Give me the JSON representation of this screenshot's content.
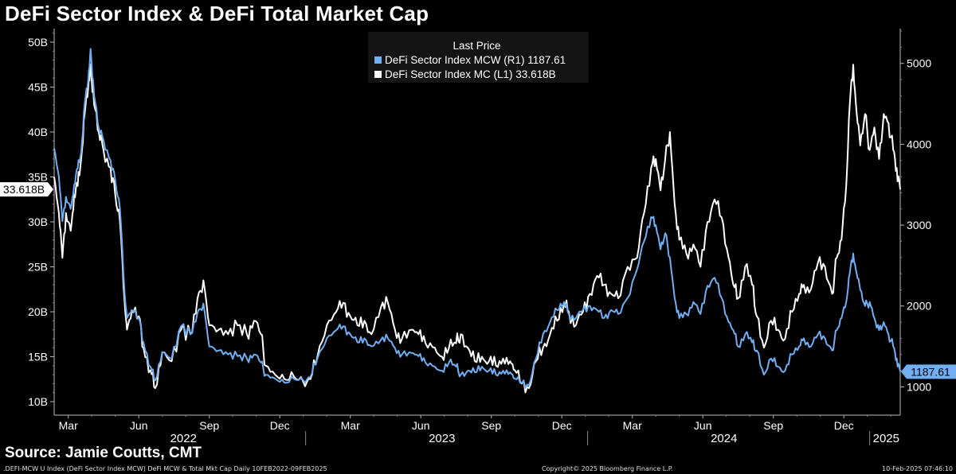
{
  "header": {
    "title": "DeFi Sector Index & DeFi Total Market Cap"
  },
  "source": "Source: Jamie Coutts, CMT",
  "footer": {
    "left": ".DEFI-MCW U Index (DeFi Sector Index MCW) DeFi MCW & Total Mkt Cap  Daily 10FEB2022-09FEB2025",
    "center": "Copyright© 2025 Bloomberg Finance L.P.",
    "right": "10-Feb-2025 07:46:10"
  },
  "colors": {
    "mcw": "#72aef2",
    "mc": "#ffffff",
    "background": "#000000"
  },
  "chart_data": {
    "type": "line",
    "title": "DeFi Sector Index & DeFi Total Market Cap",
    "x_range": [
      "2022-02-10",
      "2025-02-09"
    ],
    "legend": {
      "heading": "Last Price",
      "placement": "top-center",
      "entries": [
        {
          "label": "DeFi Sector Index MCW  (R1) 1187.61",
          "series": "mcw"
        },
        {
          "label": "DeFi Sector Index MC  (L1)  33.618B",
          "series": "mc"
        }
      ]
    },
    "left_axis": {
      "min": 8.5,
      "max": 51.5,
      "ticks": [
        10,
        15,
        20,
        25,
        30,
        35,
        40,
        45,
        50
      ],
      "tick_labels": [
        "10B",
        "15B",
        "20B",
        "25B",
        "30B",
        "35B",
        "40B",
        "45B",
        "50B"
      ],
      "last_value": 33.618,
      "last_label": "33.618B"
    },
    "right_axis": {
      "min": 650,
      "max": 5430,
      "ticks": [
        1000,
        2000,
        3000,
        4000,
        5000
      ],
      "tick_labels": [
        "1000",
        "2000",
        "3000",
        "4000",
        "5000"
      ],
      "last_value": 1187.61,
      "last_label": "1187.61"
    },
    "x_ticks": [
      {
        "label": "Mar",
        "t": 0.6
      },
      {
        "label": "Jun",
        "t": 3.6
      },
      {
        "label": "Sep",
        "t": 6.6
      },
      {
        "label": "Dec",
        "t": 9.6
      },
      {
        "label": "Mar",
        "t": 12.6
      },
      {
        "label": "Jun",
        "t": 15.6
      },
      {
        "label": "Sep",
        "t": 18.6
      },
      {
        "label": "Dec",
        "t": 21.6
      },
      {
        "label": "Mar",
        "t": 24.6
      },
      {
        "label": "Jun",
        "t": 27.6
      },
      {
        "label": "Sep",
        "t": 30.6
      },
      {
        "label": "Dec",
        "t": 33.6
      }
    ],
    "year_labels": [
      {
        "label": "2022",
        "t": 5.5
      },
      {
        "label": "2023",
        "t": 16.5
      },
      {
        "label": "2024",
        "t": 28.5
      },
      {
        "label": "2025",
        "t": 35.4
      }
    ],
    "year_separators": [
      10.7,
      22.7,
      34.7
    ],
    "x_unit": "months since 2022-02-10",
    "x_max": 36,
    "series": [
      {
        "name": "DeFi Sector Index MC (L1)",
        "axis": "left",
        "color": "#ffffff",
        "points": [
          [
            0.0,
            35
          ],
          [
            0.2,
            31
          ],
          [
            0.35,
            26
          ],
          [
            0.5,
            31
          ],
          [
            0.7,
            29
          ],
          [
            0.85,
            33
          ],
          [
            1.0,
            34
          ],
          [
            1.15,
            37
          ],
          [
            1.3,
            42
          ],
          [
            1.45,
            45
          ],
          [
            1.55,
            47.5
          ],
          [
            1.7,
            43
          ],
          [
            1.9,
            40
          ],
          [
            2.1,
            38
          ],
          [
            2.4,
            36
          ],
          [
            2.6,
            33
          ],
          [
            2.8,
            30
          ],
          [
            3.0,
            21
          ],
          [
            3.1,
            18
          ],
          [
            3.3,
            20
          ],
          [
            3.6,
            19.5
          ],
          [
            3.8,
            16
          ],
          [
            4.1,
            13.5
          ],
          [
            4.3,
            11.5
          ],
          [
            4.6,
            15.5
          ],
          [
            5.0,
            14.5
          ],
          [
            5.4,
            18
          ],
          [
            5.8,
            17.5
          ],
          [
            6.1,
            21.5
          ],
          [
            6.35,
            23.5
          ],
          [
            6.6,
            18.5
          ],
          [
            7.0,
            18
          ],
          [
            7.4,
            17.5
          ],
          [
            7.8,
            18.5
          ],
          [
            8.2,
            17.5
          ],
          [
            8.5,
            19
          ],
          [
            8.8,
            17.5
          ],
          [
            9.0,
            14
          ],
          [
            9.4,
            13
          ],
          [
            9.8,
            12.5
          ],
          [
            10.2,
            12.8
          ],
          [
            10.6,
            12.2
          ],
          [
            10.9,
            12.5
          ],
          [
            11.2,
            15
          ],
          [
            11.6,
            18.5
          ],
          [
            12.0,
            20
          ],
          [
            12.3,
            21
          ],
          [
            12.6,
            19.5
          ],
          [
            12.9,
            18.5
          ],
          [
            13.2,
            19
          ],
          [
            13.5,
            17.5
          ],
          [
            13.9,
            20.5
          ],
          [
            14.2,
            21
          ],
          [
            14.5,
            18
          ],
          [
            14.8,
            17
          ],
          [
            15.2,
            18
          ],
          [
            15.5,
            17.5
          ],
          [
            15.8,
            16.5
          ],
          [
            16.2,
            16
          ],
          [
            16.5,
            15
          ],
          [
            16.8,
            16
          ],
          [
            17.1,
            16.5
          ],
          [
            17.3,
            17.5
          ],
          [
            17.6,
            16
          ],
          [
            17.9,
            14.5
          ],
          [
            18.2,
            15
          ],
          [
            18.5,
            14.5
          ],
          [
            18.8,
            14
          ],
          [
            19.1,
            14.8
          ],
          [
            19.4,
            14.5
          ],
          [
            19.6,
            13.5
          ],
          [
            19.9,
            12
          ],
          [
            20.2,
            11.5
          ],
          [
            20.5,
            14.5
          ],
          [
            20.8,
            16
          ],
          [
            21.1,
            17.5
          ],
          [
            21.4,
            19
          ],
          [
            21.7,
            21
          ],
          [
            21.9,
            20
          ],
          [
            22.2,
            18.5
          ],
          [
            22.5,
            20
          ],
          [
            22.8,
            22
          ],
          [
            23.1,
            24
          ],
          [
            23.4,
            23
          ],
          [
            23.7,
            22
          ],
          [
            24.0,
            21.5
          ],
          [
            24.4,
            25
          ],
          [
            24.8,
            26
          ],
          [
            25.1,
            31
          ],
          [
            25.4,
            36
          ],
          [
            25.6,
            37
          ],
          [
            25.8,
            33.5
          ],
          [
            26.0,
            37
          ],
          [
            26.2,
            40
          ],
          [
            26.4,
            32
          ],
          [
            26.6,
            28
          ],
          [
            26.9,
            26.5
          ],
          [
            27.2,
            27.5
          ],
          [
            27.5,
            25
          ],
          [
            27.8,
            30
          ],
          [
            28.1,
            32.5
          ],
          [
            28.4,
            30.5
          ],
          [
            28.7,
            26
          ],
          [
            28.9,
            23
          ],
          [
            29.1,
            21.5
          ],
          [
            29.4,
            25
          ],
          [
            29.7,
            23
          ],
          [
            29.9,
            19.5
          ],
          [
            30.2,
            16
          ],
          [
            30.5,
            19
          ],
          [
            30.8,
            18
          ],
          [
            31.1,
            17
          ],
          [
            31.4,
            20
          ],
          [
            31.7,
            22
          ],
          [
            31.9,
            23
          ],
          [
            32.2,
            22.5
          ],
          [
            32.5,
            25.5
          ],
          [
            32.8,
            25
          ],
          [
            33.1,
            22
          ],
          [
            33.3,
            26
          ],
          [
            33.5,
            28
          ],
          [
            33.7,
            34
          ],
          [
            33.85,
            43
          ],
          [
            34.0,
            47.5
          ],
          [
            34.15,
            42
          ],
          [
            34.3,
            38.5
          ],
          [
            34.5,
            42
          ],
          [
            34.7,
            38
          ],
          [
            34.9,
            40.5
          ],
          [
            35.1,
            37
          ],
          [
            35.3,
            42
          ],
          [
            35.5,
            41
          ],
          [
            35.7,
            38
          ],
          [
            35.85,
            36
          ],
          [
            36.0,
            33.618
          ]
        ]
      },
      {
        "name": "DeFi Sector Index MCW (R1)",
        "axis": "right",
        "color": "#72aef2",
        "points": [
          [
            0.0,
            3950
          ],
          [
            0.2,
            3600
          ],
          [
            0.35,
            3050
          ],
          [
            0.5,
            3350
          ],
          [
            0.7,
            3200
          ],
          [
            0.85,
            3500
          ],
          [
            1.0,
            3700
          ],
          [
            1.15,
            3900
          ],
          [
            1.3,
            4500
          ],
          [
            1.45,
            4800
          ],
          [
            1.55,
            5180
          ],
          [
            1.7,
            4600
          ],
          [
            1.9,
            4200
          ],
          [
            2.1,
            4050
          ],
          [
            2.4,
            3800
          ],
          [
            2.6,
            3550
          ],
          [
            2.8,
            3200
          ],
          [
            3.0,
            2150
          ],
          [
            3.1,
            1850
          ],
          [
            3.3,
            1950
          ],
          [
            3.6,
            1850
          ],
          [
            3.8,
            1550
          ],
          [
            4.1,
            1250
          ],
          [
            4.3,
            1080
          ],
          [
            4.6,
            1430
          ],
          [
            5.0,
            1350
          ],
          [
            5.4,
            1750
          ],
          [
            5.8,
            1650
          ],
          [
            6.1,
            1920
          ],
          [
            6.35,
            2030
          ],
          [
            6.6,
            1500
          ],
          [
            7.0,
            1450
          ],
          [
            7.4,
            1400
          ],
          [
            7.8,
            1380
          ],
          [
            8.2,
            1350
          ],
          [
            8.5,
            1400
          ],
          [
            8.8,
            1300
          ],
          [
            9.0,
            1150
          ],
          [
            9.4,
            1100
          ],
          [
            9.8,
            1050
          ],
          [
            10.2,
            1100
          ],
          [
            10.6,
            1080
          ],
          [
            10.9,
            1120
          ],
          [
            11.2,
            1350
          ],
          [
            11.6,
            1600
          ],
          [
            12.0,
            1700
          ],
          [
            12.3,
            1750
          ],
          [
            12.6,
            1650
          ],
          [
            12.9,
            1550
          ],
          [
            13.2,
            1600
          ],
          [
            13.5,
            1500
          ],
          [
            13.9,
            1580
          ],
          [
            14.2,
            1600
          ],
          [
            14.5,
            1480
          ],
          [
            14.8,
            1400
          ],
          [
            15.2,
            1420
          ],
          [
            15.5,
            1380
          ],
          [
            15.8,
            1300
          ],
          [
            16.2,
            1250
          ],
          [
            16.5,
            1200
          ],
          [
            16.8,
            1300
          ],
          [
            17.1,
            1250
          ],
          [
            17.3,
            1150
          ],
          [
            17.6,
            1200
          ],
          [
            17.9,
            1180
          ],
          [
            18.2,
            1250
          ],
          [
            18.5,
            1200
          ],
          [
            18.8,
            1150
          ],
          [
            19.1,
            1200
          ],
          [
            19.4,
            1180
          ],
          [
            19.6,
            1100
          ],
          [
            19.9,
            1050
          ],
          [
            20.2,
            1020
          ],
          [
            20.5,
            1350
          ],
          [
            20.8,
            1650
          ],
          [
            21.1,
            1800
          ],
          [
            21.4,
            1950
          ],
          [
            21.7,
            2050
          ],
          [
            21.9,
            1900
          ],
          [
            22.2,
            1850
          ],
          [
            22.5,
            1950
          ],
          [
            22.8,
            2000
          ],
          [
            23.1,
            1950
          ],
          [
            23.4,
            1850
          ],
          [
            23.7,
            1950
          ],
          [
            24.0,
            1900
          ],
          [
            24.4,
            2100
          ],
          [
            24.8,
            2450
          ],
          [
            25.1,
            2800
          ],
          [
            25.4,
            3100
          ],
          [
            25.6,
            3000
          ],
          [
            25.8,
            2700
          ],
          [
            26.0,
            2900
          ],
          [
            26.2,
            2600
          ],
          [
            26.4,
            2100
          ],
          [
            26.6,
            1850
          ],
          [
            26.9,
            1900
          ],
          [
            27.2,
            2050
          ],
          [
            27.5,
            1900
          ],
          [
            27.8,
            2250
          ],
          [
            28.1,
            2350
          ],
          [
            28.4,
            2100
          ],
          [
            28.7,
            1800
          ],
          [
            28.9,
            1700
          ],
          [
            29.1,
            1500
          ],
          [
            29.4,
            1650
          ],
          [
            29.7,
            1550
          ],
          [
            29.9,
            1450
          ],
          [
            30.2,
            1150
          ],
          [
            30.5,
            1350
          ],
          [
            30.8,
            1250
          ],
          [
            31.1,
            1200
          ],
          [
            31.4,
            1400
          ],
          [
            31.7,
            1500
          ],
          [
            31.9,
            1600
          ],
          [
            32.2,
            1500
          ],
          [
            32.5,
            1650
          ],
          [
            32.8,
            1600
          ],
          [
            33.1,
            1450
          ],
          [
            33.3,
            1700
          ],
          [
            33.5,
            1850
          ],
          [
            33.7,
            2050
          ],
          [
            33.85,
            2400
          ],
          [
            34.0,
            2650
          ],
          [
            34.15,
            2400
          ],
          [
            34.3,
            2200
          ],
          [
            34.5,
            2000
          ],
          [
            34.7,
            2050
          ],
          [
            34.9,
            1850
          ],
          [
            35.1,
            1700
          ],
          [
            35.3,
            1800
          ],
          [
            35.5,
            1650
          ],
          [
            35.7,
            1500
          ],
          [
            35.85,
            1350
          ],
          [
            36.0,
            1187.61
          ]
        ]
      }
    ]
  }
}
